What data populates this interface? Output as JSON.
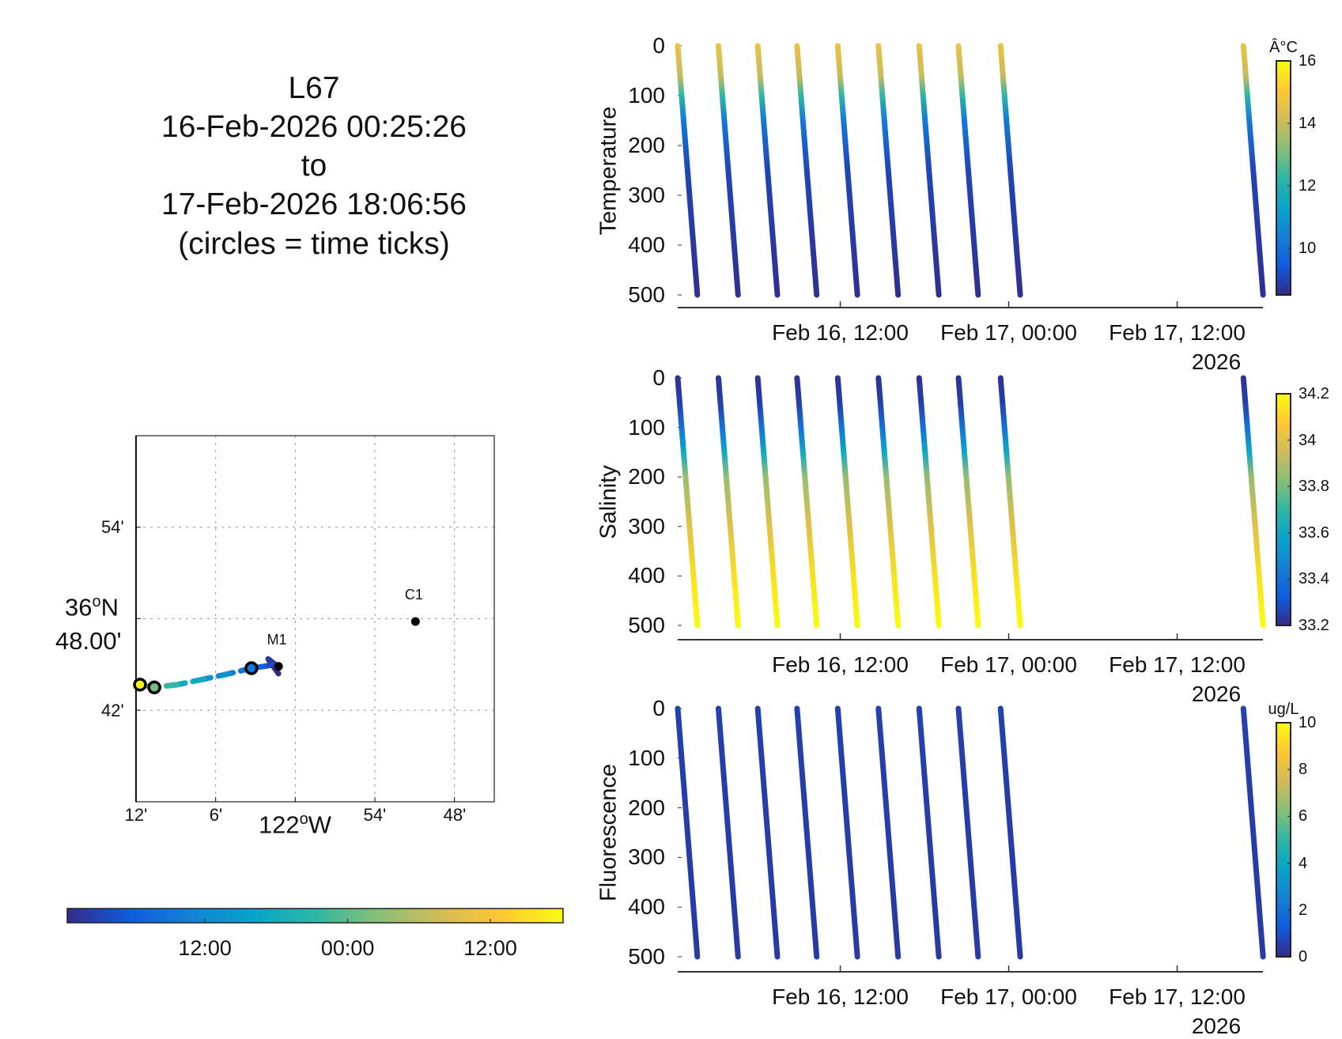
{
  "title": {
    "lines": [
      "L67",
      "16-Feb-2026 00:25:26",
      "to",
      "17-Feb-2026 18:06:56",
      "(circles = time ticks)"
    ]
  },
  "colormap": [
    "#352a87",
    "#0f5cdd",
    "#1481d6",
    "#06a4ca",
    "#2eb7a4",
    "#87bf77",
    "#d1bb59",
    "#fec832",
    "#f9fb0e"
  ],
  "map": {
    "lat_ticks": [
      "54'",
      "48.00'",
      "42'"
    ],
    "lat_main": "36",
    "lat_main_suffix": "N",
    "lon_ticks": [
      "12'",
      "6'",
      "54'",
      "48'"
    ],
    "lon_main": "122",
    "lon_main_suffix": "W",
    "degree_mark": "o",
    "lon_range": [
      -122.2,
      -121.75
    ],
    "lat_range": [
      36.6,
      37.0
    ],
    "stations": [
      {
        "name": "M1",
        "lon": -122.021,
        "lat": 36.748
      },
      {
        "name": "C1",
        "lon": -121.849,
        "lat": 36.797
      }
    ],
    "track": [
      {
        "lon": -122.021,
        "lat": 36.74,
        "t": 0
      },
      {
        "lon": -122.034,
        "lat": 36.756,
        "t": 1
      },
      {
        "lon": -122.025,
        "lat": 36.75,
        "t": 3
      },
      {
        "lon": -122.039,
        "lat": 36.748,
        "t": 6
      },
      {
        "lon": -122.055,
        "lat": 36.746,
        "t": 9
      },
      {
        "lon": -122.083,
        "lat": 36.74,
        "t": 13
      },
      {
        "lon": -122.115,
        "lat": 36.734,
        "t": 17
      },
      {
        "lon": -122.148,
        "lat": 36.728,
        "t": 21
      },
      {
        "lon": -122.177,
        "lat": 36.725,
        "t": 25
      },
      {
        "lon": -122.195,
        "lat": 36.728,
        "t": 41.7
      }
    ],
    "time_tick_circles": [
      {
        "lon": -122.055,
        "lat": 36.746,
        "t": 9
      },
      {
        "lon": -122.177,
        "lat": 36.725,
        "t": 25
      },
      {
        "lon": -122.195,
        "lat": 36.728,
        "t": 41.7
      }
    ]
  },
  "time_colorbar": {
    "ticks": [
      {
        "label": "12:00",
        "t": 11.58
      },
      {
        "label": "00:00",
        "t": 23.58
      },
      {
        "label": "12:00",
        "t": 35.58
      }
    ]
  },
  "chart_data": [
    {
      "type": "scatter",
      "title": "",
      "ylabel": "Temperature",
      "colorbar_label": "Â°C",
      "colorbar_range": [
        8.5,
        16
      ],
      "colorbar_ticks": [
        "10",
        "12",
        "14",
        "16"
      ],
      "colorbar_tick_values": [
        10,
        12,
        14,
        16
      ],
      "ylim": [
        0,
        500
      ],
      "yticks": [
        "0",
        "100",
        "200",
        "300",
        "400",
        "500"
      ],
      "xlim_hours_since_start": [
        0,
        41.69
      ],
      "xticks": [
        {
          "label": "Feb 16, 12:00",
          "h": 11.58
        },
        {
          "label": "Feb 17, 00:00",
          "h": 23.58
        },
        {
          "label": "Feb 17, 12:00",
          "h": 35.58
        }
      ],
      "year_label": "2026",
      "profile_start_hours": [
        0,
        2.9,
        5.7,
        8.5,
        11.4,
        14.3,
        17.2,
        20.0,
        23.0,
        40.3
      ],
      "profile_duration_hours": 1.4,
      "depth_profile": [
        [
          0,
          14.6
        ],
        [
          60,
          14.0
        ],
        [
          100,
          12.2
        ],
        [
          150,
          10.2
        ],
        [
          250,
          9.0
        ],
        [
          500,
          8.6
        ]
      ]
    },
    {
      "type": "scatter",
      "ylabel": "Salinity",
      "colorbar_label": "",
      "colorbar_range": [
        33.2,
        34.2
      ],
      "colorbar_ticks": [
        "33.2",
        "33.4",
        "33.6",
        "33.8",
        "34",
        "34.2"
      ],
      "colorbar_tick_values": [
        33.2,
        33.4,
        33.6,
        33.8,
        34.0,
        34.2
      ],
      "ylim": [
        0,
        500
      ],
      "yticks": [
        "0",
        "100",
        "200",
        "300",
        "400",
        "500"
      ],
      "xlim_hours_since_start": [
        0,
        41.69
      ],
      "xticks": [
        {
          "label": "Feb 16, 12:00",
          "h": 11.58
        },
        {
          "label": "Feb 17, 00:00",
          "h": 23.58
        },
        {
          "label": "Feb 17, 12:00",
          "h": 35.58
        }
      ],
      "year_label": "2026",
      "profile_start_hours": [
        0,
        2.9,
        5.7,
        8.5,
        11.4,
        14.3,
        17.2,
        20.0,
        23.0,
        40.3
      ],
      "profile_duration_hours": 1.4,
      "depth_profile": [
        [
          0,
          33.22
        ],
        [
          50,
          33.25
        ],
        [
          100,
          33.4
        ],
        [
          150,
          33.6
        ],
        [
          200,
          33.85
        ],
        [
          300,
          34.0
        ],
        [
          420,
          34.15
        ],
        [
          500,
          34.2
        ]
      ]
    },
    {
      "type": "scatter",
      "ylabel": "Fluorescence",
      "colorbar_label": "ug/L",
      "colorbar_range": [
        0,
        10
      ],
      "colorbar_ticks": [
        "0",
        "2",
        "4",
        "6",
        "8",
        "10"
      ],
      "colorbar_tick_values": [
        0,
        2,
        4,
        6,
        8,
        10
      ],
      "ylim": [
        0,
        500
      ],
      "yticks": [
        "0",
        "100",
        "200",
        "300",
        "400",
        "500"
      ],
      "xlim_hours_since_start": [
        0,
        41.69
      ],
      "xticks": [
        {
          "label": "Feb 16, 12:00",
          "h": 11.58
        },
        {
          "label": "Feb 17, 00:00",
          "h": 23.58
        },
        {
          "label": "Feb 17, 12:00",
          "h": 35.58
        }
      ],
      "year_label": "2026",
      "profile_start_hours": [
        0,
        2.9,
        5.7,
        8.5,
        11.4,
        14.3,
        17.2,
        20.0,
        23.0,
        40.3
      ],
      "profile_duration_hours": 1.4,
      "depth_profile": [
        [
          0,
          0.6
        ],
        [
          100,
          0.5
        ],
        [
          500,
          0.4
        ]
      ]
    }
  ]
}
